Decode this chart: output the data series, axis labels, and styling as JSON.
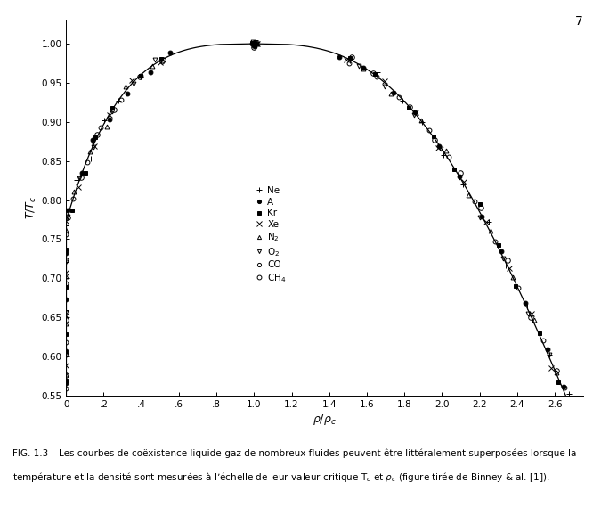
{
  "title": "",
  "xlabel": "$\\rho/\\rho_c$",
  "ylabel": "$T/T_c$",
  "xlim": [
    0,
    2.75
  ],
  "ylim": [
    0.55,
    1.03
  ],
  "xticks": [
    0,
    0.2,
    0.4,
    0.6,
    0.8,
    1.0,
    1.2,
    1.4,
    1.6,
    1.8,
    2.0,
    2.2,
    2.4,
    2.6
  ],
  "xticklabels": [
    "0",
    ".2",
    ".4",
    ".6",
    ".8",
    "1.0",
    "1.2",
    "1.4",
    "1.6",
    "1.8",
    "2.0",
    "2.2",
    "2.4",
    "2.6"
  ],
  "yticks": [
    0.55,
    0.6,
    0.65,
    0.7,
    0.75,
    0.8,
    0.85,
    0.9,
    0.95,
    1.0
  ],
  "caption_line1": "FIG. 1.3 – Les courbes de coëxistence liquide-gaz de nombreux fluides peuvent être littéralement superposées lorsque la",
  "caption_line2": "température et la densité sont mesurées à l’échelle de leur valeur critique T$_c$ et $\\rho_c$ (figure tirée de Binney & al. [1]).",
  "page_number": "7",
  "background_color": "#ffffff",
  "figsize": [
    6.75,
    5.69
  ],
  "dpi": 100
}
